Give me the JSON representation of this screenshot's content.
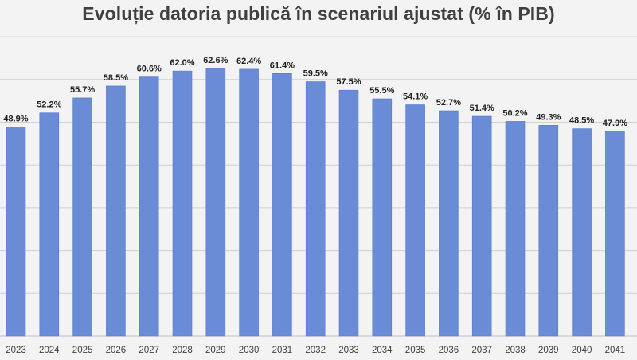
{
  "chart_data": {
    "type": "bar",
    "title": "Evoluție datoria publică în scenariul ajustat (% în PIB)",
    "xlabel": "",
    "ylabel": "",
    "categories": [
      "2023",
      "2024",
      "2025",
      "2026",
      "2027",
      "2028",
      "2029",
      "2030",
      "2031",
      "2032",
      "2033",
      "2034",
      "2035",
      "2036",
      "2037",
      "2038",
      "2039",
      "2040",
      "2041"
    ],
    "values": [
      48.9,
      52.2,
      55.7,
      58.5,
      60.6,
      62.0,
      62.6,
      62.4,
      61.4,
      59.5,
      57.5,
      55.5,
      54.1,
      52.7,
      51.4,
      50.2,
      49.3,
      48.5,
      47.9
    ],
    "data_labels": [
      "48.9%",
      "52.2%",
      "55.7%",
      "58.5%",
      "60.6%",
      "62.0%",
      "62.6%",
      "62.4%",
      "61.4%",
      "59.5%",
      "57.5%",
      "55.5%",
      "54.1%",
      "52.7%",
      "51.4%",
      "50.2%",
      "49.3%",
      "48.5%",
      "47.9%"
    ],
    "ylim": [
      0,
      70
    ],
    "grid": true,
    "colors": {
      "bar": "#6a8bd6",
      "bar_edge": "#5a7cc9",
      "grid": "#d0d0d0",
      "axis": "#bfbfbf"
    }
  }
}
